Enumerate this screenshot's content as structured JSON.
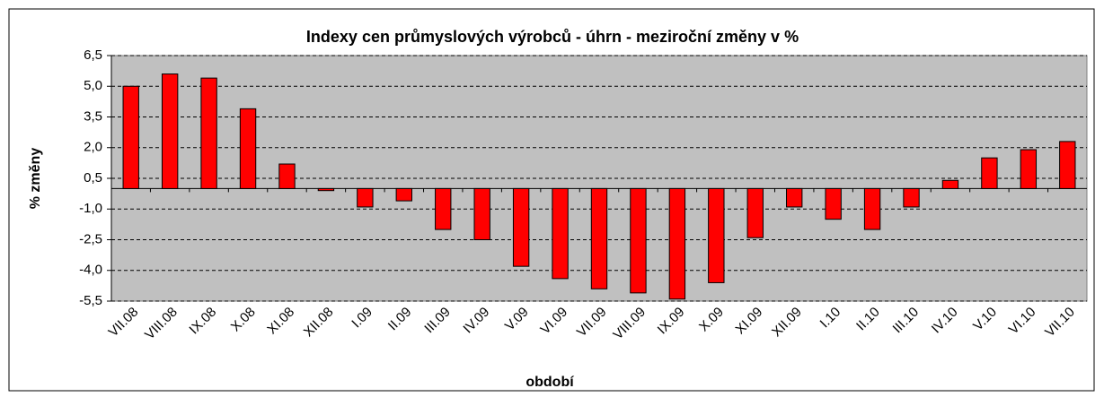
{
  "chart_data": {
    "type": "bar",
    "title": "Indexy cen průmyslových výrobců - úhrn - meziroční změny v %",
    "x_label": "období",
    "y_label": "% změny",
    "categories": [
      "VII.08",
      "VIII.08",
      "IX.08",
      "X.08",
      "XI.08",
      "XII.08",
      "I.09",
      "II.09",
      "III.09",
      "IV.09",
      "V.09",
      "VI.09",
      "VII.09",
      "VIII.09",
      "IX.09",
      "X.09",
      "XI.09",
      "XII.09",
      "I.10",
      "II.10",
      "III.10",
      "IV.10",
      "V.10",
      "VI.10",
      "VII.10"
    ],
    "values": [
      5.0,
      5.6,
      5.4,
      3.9,
      1.2,
      -0.1,
      -0.9,
      -0.6,
      -2.0,
      -2.5,
      -3.8,
      -4.4,
      -4.9,
      -5.1,
      -5.4,
      -4.6,
      -2.4,
      -0.9,
      -1.5,
      -2.0,
      -0.9,
      0.4,
      1.5,
      1.9,
      2.3
    ],
    "color": "#ff0000",
    "ylim": [
      -5.5,
      6.5
    ],
    "yticks": [
      {
        "value": -5.5,
        "label": "-5,5"
      },
      {
        "value": -4,
        "label": "-4,0"
      },
      {
        "value": -2.5,
        "label": "-2,5"
      },
      {
        "value": -1,
        "label": "-1,0"
      },
      {
        "value": 0.5,
        "label": "0,5"
      },
      {
        "value": 2,
        "label": "2,0"
      },
      {
        "value": 3.5,
        "label": "3,5"
      },
      {
        "value": 5,
        "label": "5,0"
      },
      {
        "value": 6.5,
        "label": "6,5"
      }
    ],
    "grid": true
  }
}
